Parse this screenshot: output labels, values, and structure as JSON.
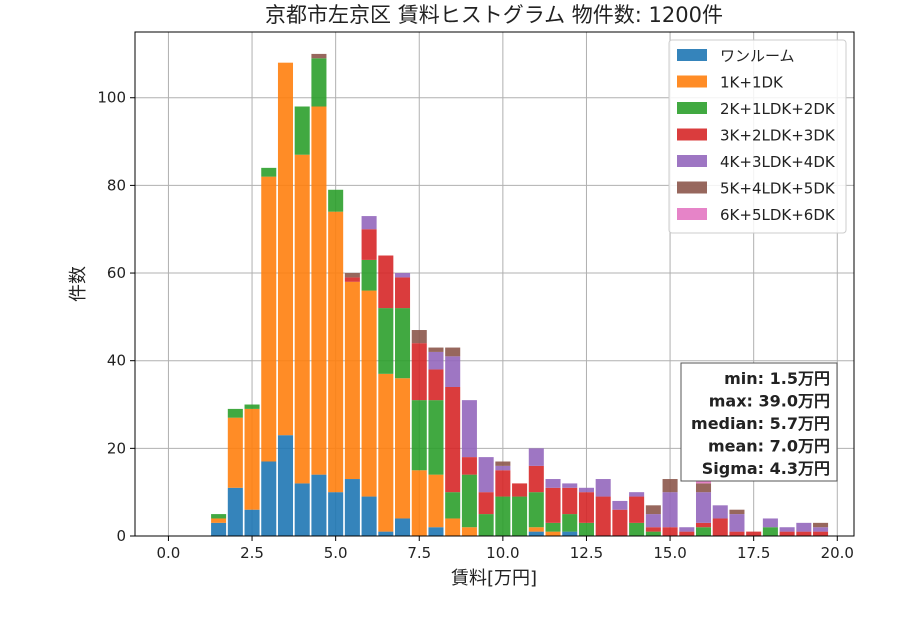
{
  "chart_data": {
    "type": "bar",
    "stacked": true,
    "title": "京都市左京区 賃料ヒストグラム 物件数: 1200件",
    "xlabel": "賃料[万円]",
    "ylabel": "件数",
    "xlim": [
      -1.0,
      20.5
    ],
    "ylim": [
      0,
      115
    ],
    "xticks": [
      "0.0",
      "2.5",
      "5.0",
      "7.5",
      "10.0",
      "12.5",
      "15.0",
      "17.5",
      "20.0"
    ],
    "yticks": [
      "0",
      "20",
      "40",
      "60",
      "80",
      "100"
    ],
    "grid": true,
    "legend_position": "top-right",
    "bin_width": 0.5,
    "x": [
      1.5,
      2.0,
      2.5,
      3.0,
      3.5,
      4.0,
      4.5,
      5.0,
      5.5,
      6.0,
      6.5,
      7.0,
      7.5,
      8.0,
      8.5,
      9.0,
      9.5,
      10.0,
      10.5,
      11.0,
      11.5,
      12.0,
      12.5,
      13.0,
      13.5,
      14.0,
      14.5,
      15.0,
      15.5,
      16.0,
      16.5,
      17.0,
      17.5,
      18.0,
      18.5,
      19.0,
      19.5
    ],
    "series": [
      {
        "name": "ワンルーム",
        "color": "#1f77b4",
        "values": [
          3,
          11,
          6,
          17,
          23,
          12,
          14,
          10,
          13,
          9,
          1,
          4,
          0,
          2,
          0,
          0,
          0,
          0,
          0,
          1,
          0,
          1,
          0,
          0,
          0,
          0,
          0,
          0,
          0,
          0,
          0,
          0,
          0,
          0,
          0,
          0,
          0
        ]
      },
      {
        "name": "1K+1DK",
        "color": "#ff7f0e",
        "values": [
          1,
          16,
          23,
          65,
          85,
          75,
          84,
          64,
          45,
          47,
          36,
          32,
          15,
          12,
          4,
          2,
          0,
          0,
          0,
          1,
          1,
          0,
          0,
          0,
          0,
          0,
          0,
          0,
          0,
          0,
          0,
          0,
          0,
          0,
          0,
          0,
          0
        ]
      },
      {
        "name": "2K+1LDK+2DK",
        "color": "#2ca02c",
        "values": [
          1,
          2,
          1,
          2,
          0,
          11,
          11,
          5,
          0,
          7,
          15,
          16,
          16,
          17,
          6,
          12,
          5,
          9,
          9,
          8,
          2,
          4,
          3,
          0,
          0,
          3,
          1,
          0,
          0,
          2,
          0,
          0,
          0,
          2,
          0,
          0,
          0
        ]
      },
      {
        "name": "3K+2LDK+3DK",
        "color": "#d62728",
        "values": [
          0,
          0,
          0,
          0,
          0,
          0,
          0,
          0,
          1,
          7,
          12,
          7,
          13,
          7,
          24,
          4,
          5,
          6,
          3,
          6,
          8,
          6,
          7,
          9,
          6,
          6,
          1,
          2,
          1,
          1,
          4,
          1,
          1,
          0,
          1,
          1,
          1
        ]
      },
      {
        "name": "4K+3LDK+4DK",
        "color": "#9467bd",
        "values": [
          0,
          0,
          0,
          0,
          0,
          0,
          0,
          0,
          0,
          3,
          0,
          1,
          0,
          4,
          7,
          13,
          8,
          1,
          0,
          4,
          2,
          1,
          1,
          4,
          2,
          1,
          3,
          8,
          1,
          7,
          3,
          4,
          0,
          2,
          1,
          2,
          1
        ]
      },
      {
        "name": "5K+4LDK+5DK",
        "color": "#8c564b",
        "values": [
          0,
          0,
          0,
          0,
          0,
          0,
          1,
          0,
          1,
          0,
          0,
          0,
          3,
          1,
          2,
          0,
          0,
          1,
          0,
          0,
          0,
          0,
          0,
          0,
          0,
          0,
          2,
          3,
          0,
          2,
          0,
          1,
          0,
          0,
          0,
          0,
          1
        ]
      },
      {
        "name": "6K+5LDK+6DK",
        "color": "#e377c2",
        "values": [
          0,
          0,
          0,
          0,
          0,
          0,
          0,
          0,
          0,
          0,
          0,
          0,
          0,
          0,
          0,
          0,
          0,
          0,
          0,
          0,
          0,
          0,
          0,
          0,
          0,
          0,
          0,
          0,
          0,
          1,
          0,
          0,
          0,
          0,
          0,
          0,
          0
        ]
      }
    ],
    "annotations": [
      "min: 1.5万円",
      "max: 39.0万円",
      "median: 5.7万円",
      "mean: 7.0万円",
      "Sigma: 4.3万円"
    ]
  }
}
